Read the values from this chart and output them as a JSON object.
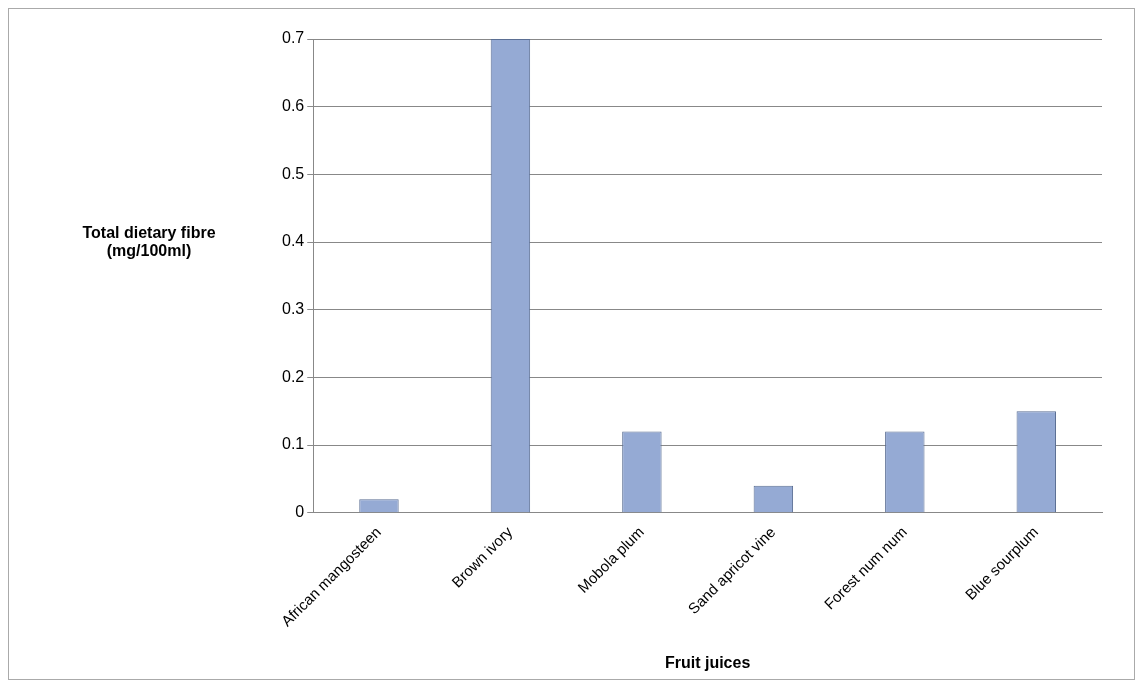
{
  "chart_data": {
    "type": "bar",
    "xlabel": "Fruit juices",
    "ylabel": "Total dietary fibre (mg/100ml)",
    "categories": [
      "African mangosteen",
      "Brown ivory",
      "Mobola plum",
      "Sand apricot vine",
      "Forest num num",
      "Blue sourplum"
    ],
    "values": [
      0.02,
      0.7,
      0.12,
      0.04,
      0.12,
      0.15
    ],
    "color": "#95aad4",
    "ylim": [
      0,
      0.7
    ],
    "yticks": [
      0,
      0.1,
      0.2,
      0.3,
      0.4,
      0.5,
      0.6,
      0.7
    ],
    "grid": "y",
    "legend": false
  }
}
